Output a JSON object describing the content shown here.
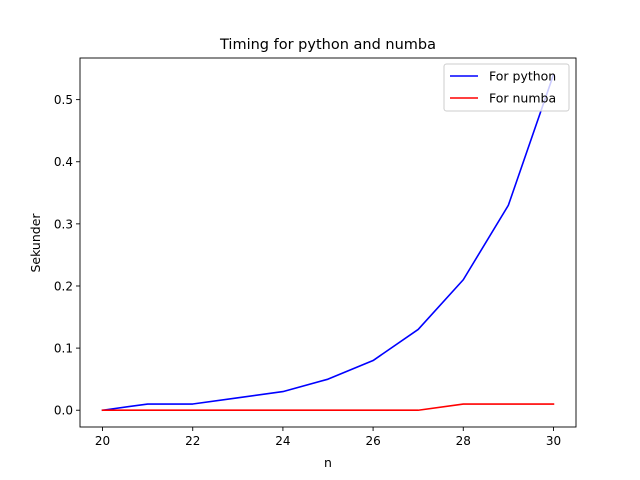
{
  "chart_data": {
    "type": "line",
    "title": "Timing for python and numba",
    "xlabel": "n",
    "ylabel": "Sekunder",
    "xlim": [
      19.5,
      30.5
    ],
    "ylim": [
      -0.027,
      0.567
    ],
    "xticks": [
      20,
      22,
      24,
      26,
      28,
      30
    ],
    "xtick_labels": [
      "20",
      "22",
      "24",
      "26",
      "28",
      "30"
    ],
    "yticks": [
      0.0,
      0.1,
      0.2,
      0.3,
      0.4,
      0.5
    ],
    "ytick_labels": [
      "0.0",
      "0.1",
      "0.2",
      "0.3",
      "0.4",
      "0.5"
    ],
    "grid": false,
    "legend_position": "upper-right",
    "x": [
      20,
      21,
      22,
      23,
      24,
      25,
      26,
      27,
      28,
      29,
      30
    ],
    "series": [
      {
        "name": "For python",
        "color": "#0000ff",
        "values": [
          0.0,
          0.01,
          0.01,
          0.02,
          0.03,
          0.05,
          0.08,
          0.13,
          0.21,
          0.33,
          0.54
        ]
      },
      {
        "name": "For numba",
        "color": "#ff0000",
        "values": [
          0.0,
          0.0,
          0.0,
          0.0,
          0.0,
          0.0,
          0.0,
          0.0,
          0.01,
          0.01,
          0.01
        ]
      }
    ]
  }
}
